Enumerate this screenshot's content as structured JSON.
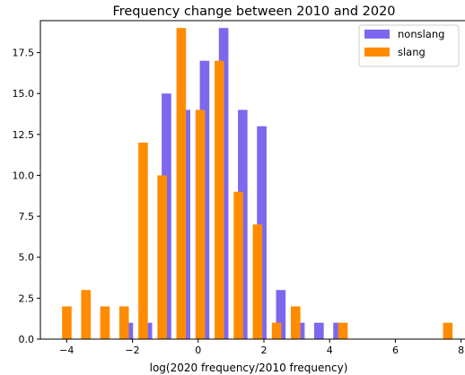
{
  "chart_data": {
    "type": "bar",
    "title": "Frequency change between 2010 and 2020",
    "xlabel": "log(2020 frequency/2010 frequency)",
    "ylabel": "",
    "xlim": [
      -4.8,
      8.2
    ],
    "ylim": [
      0,
      19.45
    ],
    "x_ticks": [
      -4,
      -2,
      0,
      2,
      4,
      6,
      8
    ],
    "y_ticks": [
      0.0,
      2.5,
      5.0,
      7.5,
      10.0,
      12.5,
      15.0,
      17.5
    ],
    "x_tick_labels": [
      "−4",
      "−2",
      "0",
      "2",
      "4",
      "6",
      "8"
    ],
    "y_tick_labels": [
      "0.0",
      "2.5",
      "5.0",
      "7.5",
      "10.0",
      "12.5",
      "15.0",
      "17.5"
    ],
    "bin_width": 0.29,
    "legend_position": "top-right",
    "grid": false,
    "series": [
      {
        "name": "nonslang",
        "color": "#7b68ee",
        "x": [
          -2.27,
          -1.69,
          -1.11,
          -0.53,
          0.05,
          0.63,
          1.21,
          1.79,
          2.37,
          2.95,
          3.53,
          4.11
        ],
        "values": [
          1,
          1,
          15,
          14,
          17,
          19,
          14,
          13,
          3,
          1,
          1,
          1
        ]
      },
      {
        "name": "slang",
        "color": "#ff8c00",
        "x": [
          -4.14,
          -3.56,
          -2.98,
          -2.4,
          -1.82,
          -1.24,
          -0.66,
          -0.08,
          0.5,
          1.08,
          1.66,
          2.24,
          2.82,
          4.26,
          7.45
        ],
        "values": [
          2,
          3,
          2,
          2,
          12,
          10,
          19,
          14,
          17,
          9,
          7,
          1,
          2,
          1,
          1
        ]
      }
    ]
  }
}
